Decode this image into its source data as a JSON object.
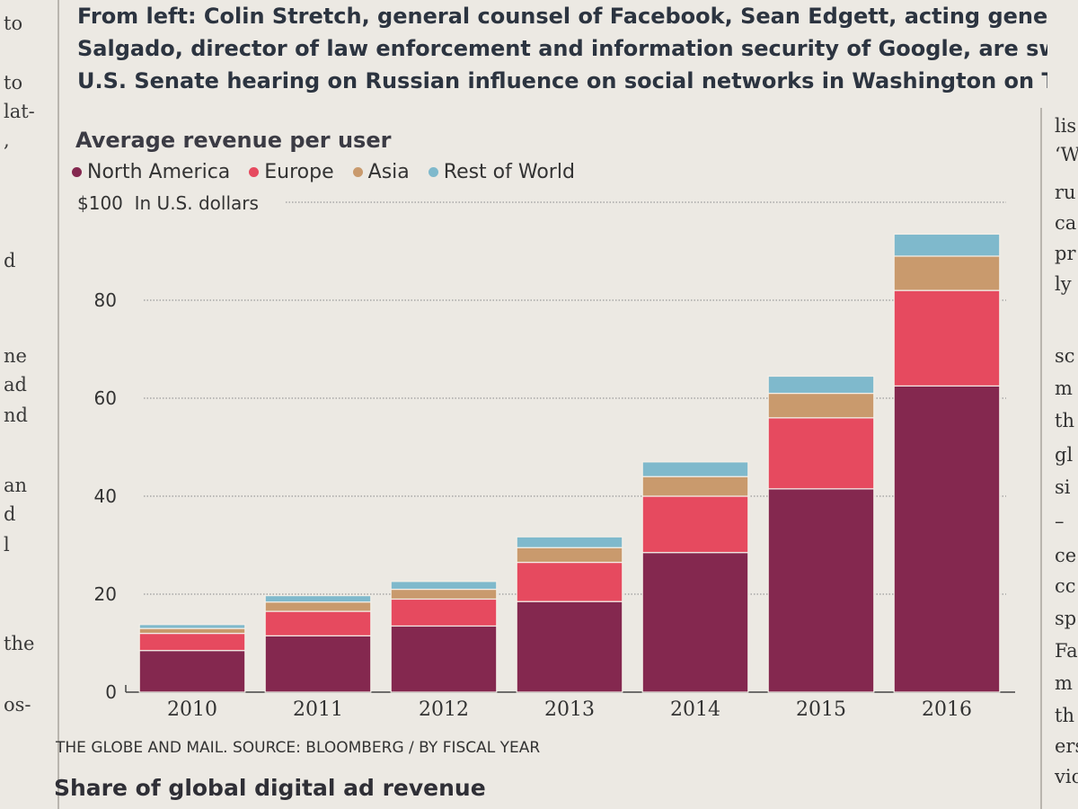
{
  "caption": {
    "line1": "From left: Colin Stretch, general counsel of Facebook, Sean Edgett, acting general",
    "line2": "Salgado, director of law enforcement and information security of Google, are swo",
    "line3": "U.S. Senate hearing on Russian influence on social networks in Washington on Tu"
  },
  "left_column_fragments": [
    "to",
    "to",
    "lat-",
    ",",
    "d",
    "ne",
    "ad",
    "nd",
    "an",
    "d",
    "l",
    "the",
    "os-"
  ],
  "right_column_fragments": [
    "lis",
    "‘W",
    "ru",
    "ca",
    "pr",
    "ly",
    "sc",
    "m",
    "th",
    "gl",
    "si",
    "–",
    "ce",
    "cc",
    "sp",
    "Fa",
    "m",
    "th",
    "ers",
    "vic"
  ],
  "chart_data": {
    "type": "bar",
    "stacked": true,
    "title": "Average revenue per user",
    "unit_label": "In U.S. dollars",
    "ylabel": "",
    "xlabel": "",
    "categories": [
      "2010",
      "2011",
      "2012",
      "2013",
      "2014",
      "2015",
      "2016"
    ],
    "ylim": [
      0,
      100
    ],
    "yticks": [
      0,
      20,
      40,
      60,
      80,
      100
    ],
    "ytick_labels": [
      "0",
      "20",
      "40",
      "60",
      "80",
      "$100"
    ],
    "grid": true,
    "legend_position": "top-left",
    "series": [
      {
        "name": "North America",
        "color": "#84284f",
        "values": [
          8.5,
          11.5,
          13.5,
          18.5,
          28.5,
          41.5,
          62.5
        ]
      },
      {
        "name": "Europe",
        "color": "#e64a5f",
        "values": [
          3.5,
          5.0,
          5.5,
          8.0,
          11.5,
          14.5,
          19.5
        ]
      },
      {
        "name": "Asia",
        "color": "#c99a6d",
        "values": [
          1.0,
          1.9,
          2.0,
          3.0,
          4.0,
          5.0,
          7.0
        ]
      },
      {
        "name": "Rest of World",
        "color": "#7fb9cc",
        "values": [
          0.8,
          1.3,
          1.6,
          2.2,
          3.0,
          3.5,
          4.5
        ]
      }
    ]
  },
  "source": "THE GLOBE AND MAIL. SOURCE: BLOOMBERG / BY FISCAL YEAR",
  "next_chart_title": "Share of global digital ad revenue"
}
